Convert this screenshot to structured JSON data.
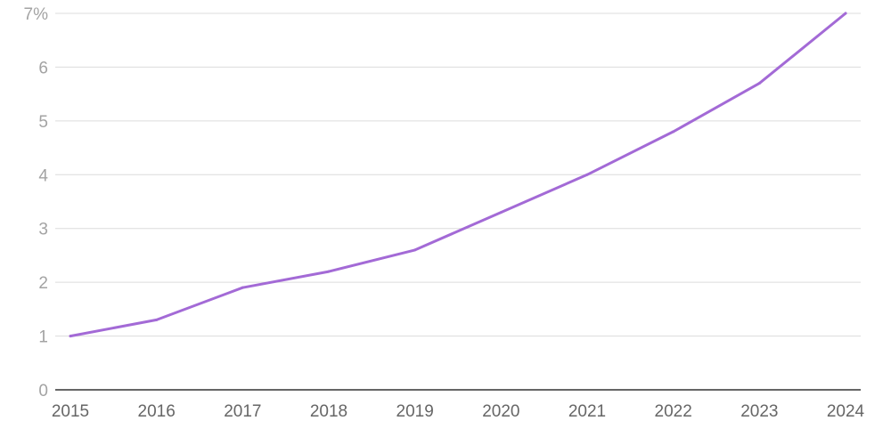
{
  "chart_data": {
    "type": "line",
    "title": "",
    "xlabel": "",
    "ylabel": "",
    "x": [
      "2015",
      "2016",
      "2017",
      "2018",
      "2019",
      "2020",
      "2021",
      "2022",
      "2023",
      "2024"
    ],
    "series": [
      {
        "values": [
          1.0,
          1.3,
          1.9,
          2.2,
          2.6,
          3.3,
          4.0,
          4.8,
          5.7,
          7.0
        ],
        "color": "#a36ad6"
      }
    ],
    "ylim": [
      0,
      7
    ],
    "yticks": [
      "0",
      "1",
      "2",
      "3",
      "4",
      "5",
      "6",
      "7%"
    ],
    "grid": true,
    "legend": "none"
  }
}
